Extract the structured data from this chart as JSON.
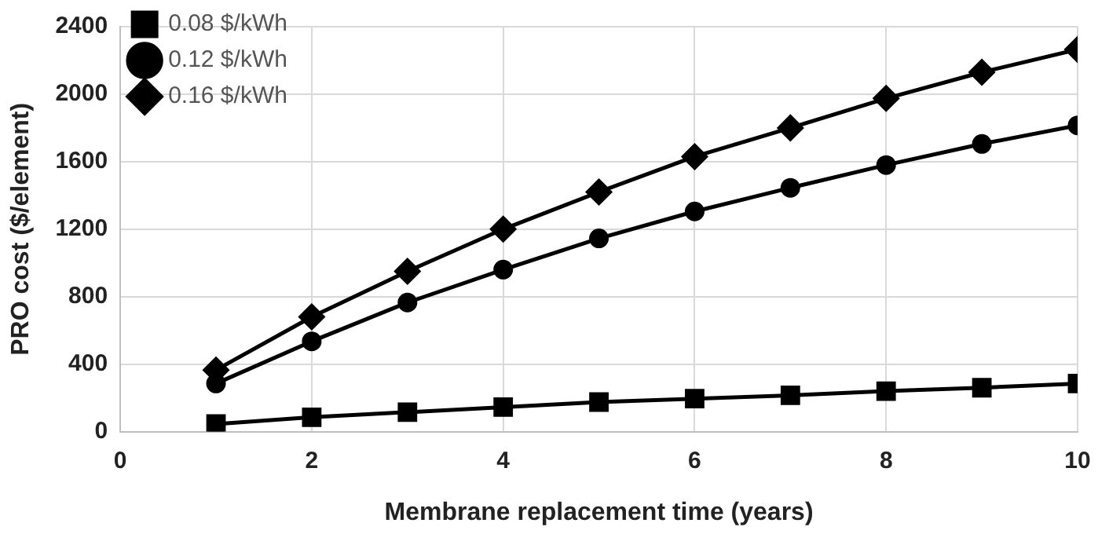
{
  "chart_data": {
    "type": "line",
    "xlabel": "Membrane replacement time (years)",
    "ylabel": "PRO cost ($/element)",
    "x": [
      1,
      2,
      3,
      4,
      5,
      6,
      7,
      8,
      9,
      10
    ],
    "series": [
      {
        "name": "0.08 $/kWh",
        "color": "#000000",
        "marker": "square",
        "values": [
          45,
          85,
          115,
          145,
          175,
          195,
          215,
          240,
          260,
          285
        ]
      },
      {
        "name": "0.12 $/kWh",
        "color": "#000000",
        "marker": "circle",
        "values": [
          285,
          535,
          765,
          960,
          1145,
          1305,
          1445,
          1580,
          1705,
          1815
        ]
      },
      {
        "name": "0.16 $/kWh",
        "color": "#000000",
        "marker": "diamond",
        "values": [
          365,
          680,
          950,
          1200,
          1420,
          1630,
          1800,
          1975,
          2130,
          2265
        ]
      }
    ],
    "xlim": [
      0,
      10
    ],
    "xticks": [
      0,
      2,
      4,
      6,
      8,
      10
    ],
    "ylim": [
      0,
      2400
    ],
    "yticks": [
      0,
      400,
      800,
      1200,
      1600,
      2000,
      2400
    ],
    "grid": true,
    "legend": "top left",
    "line_style": "solid"
  }
}
